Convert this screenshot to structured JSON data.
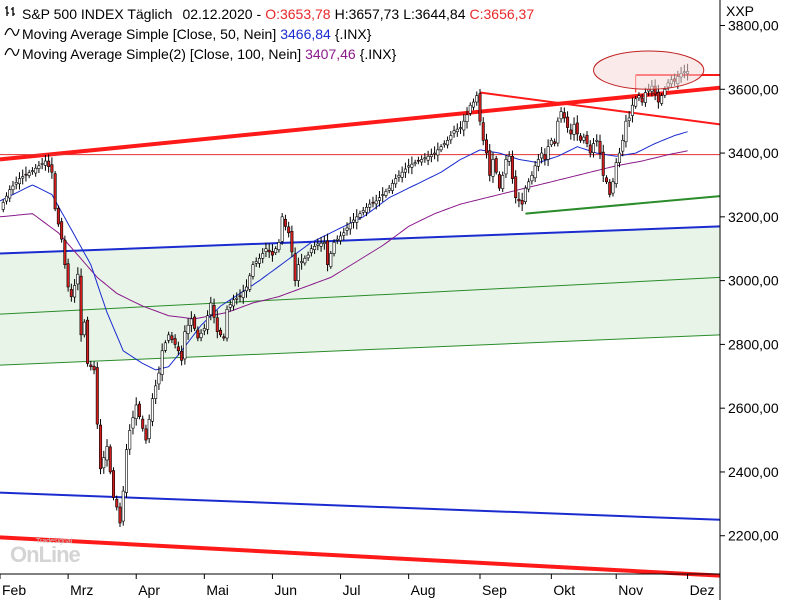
{
  "legend": {
    "instrument": "S&P 500 INDEX Täglich",
    "date": "02.12.2020",
    "open": "O:3653,78",
    "high": "H:3657,73",
    "low": "L:3644,84",
    "close": "C:3656,37",
    "ma50_label": "Moving Average Simple [Close, 50, Nein]",
    "ma50_value": "3466,84",
    "ma50_source": "{.INX}",
    "ma100_label": "Moving Average Simple(2) [Close, 100, Nein]",
    "ma100_value": "3407,46",
    "ma100_source": "{.INX}"
  },
  "watermark": {
    "small": "Tradesignal",
    "big": "OnLine"
  },
  "chart_data": {
    "type": "line",
    "instrument": "S&P 500 INDEX",
    "y_axis_label": "XXP",
    "ylim": [
      2080,
      3880
    ],
    "y_ticks": [
      2200,
      2400,
      2600,
      2800,
      3000,
      3200,
      3400,
      3600,
      3800
    ],
    "y_tick_labels": [
      "2200,00",
      "2400,00",
      "2600,00",
      "2800,00",
      "3000,00",
      "3200,00",
      "3400,00",
      "3600,00",
      "3800,00"
    ],
    "x_tick_labels": [
      "Feb",
      "Mrz",
      "Apr",
      "Mai",
      "Jun",
      "Jul",
      "Aug",
      "Sep",
      "Okt",
      "Nov",
      "Dez"
    ],
    "x_tick_day": [
      0,
      21,
      42,
      63,
      84,
      105,
      126,
      148,
      170,
      190,
      212
    ],
    "day_range": [
      0,
      222
    ],
    "price_key": [
      [
        0,
        3225
      ],
      [
        3,
        3285
      ],
      [
        6,
        3320
      ],
      [
        10,
        3345
      ],
      [
        14,
        3375
      ],
      [
        16,
        3340
      ],
      [
        17,
        3225
      ],
      [
        19,
        3130
      ],
      [
        20,
        3050
      ],
      [
        21,
        2980
      ],
      [
        22,
        2950
      ],
      [
        24,
        3020
      ],
      [
        25,
        2830
      ],
      [
        26,
        2870
      ],
      [
        27,
        2740
      ],
      [
        29,
        2720
      ],
      [
        30,
        2550
      ],
      [
        31,
        2410
      ],
      [
        33,
        2480
      ],
      [
        35,
        2320
      ],
      [
        36,
        2290
      ],
      [
        37,
        2240
      ],
      [
        38,
        2340
      ],
      [
        39,
        2470
      ],
      [
        40,
        2530
      ],
      [
        42,
        2610
      ],
      [
        45,
        2500
      ],
      [
        47,
        2630
      ],
      [
        49,
        2710
      ],
      [
        50,
        2780
      ],
      [
        52,
        2830
      ],
      [
        54,
        2800
      ],
      [
        55,
        2780
      ],
      [
        56,
        2750
      ],
      [
        57,
        2840
      ],
      [
        59,
        2880
      ],
      [
        61,
        2820
      ],
      [
        63,
        2850
      ],
      [
        65,
        2930
      ],
      [
        67,
        2840
      ],
      [
        69,
        2820
      ],
      [
        70,
        2910
      ],
      [
        72,
        2940
      ],
      [
        74,
        2950
      ],
      [
        76,
        2980
      ],
      [
        78,
        3050
      ],
      [
        80,
        3070
      ],
      [
        82,
        3100
      ],
      [
        84,
        3080
      ],
      [
        86,
        3120
      ],
      [
        87,
        3200
      ],
      [
        88,
        3170
      ],
      [
        89,
        3150
      ],
      [
        90,
        3090
      ],
      [
        91,
        3000
      ],
      [
        92,
        3050
      ],
      [
        95,
        3080
      ],
      [
        96,
        3100
      ],
      [
        98,
        3115
      ],
      [
        100,
        3120
      ],
      [
        101,
        3050
      ],
      [
        103,
        3120
      ],
      [
        106,
        3150
      ],
      [
        108,
        3180
      ],
      [
        110,
        3200
      ],
      [
        112,
        3220
      ],
      [
        114,
        3240
      ],
      [
        116,
        3250
      ],
      [
        118,
        3270
      ],
      [
        120,
        3290
      ],
      [
        122,
        3320
      ],
      [
        124,
        3340
      ],
      [
        126,
        3360
      ],
      [
        128,
        3370
      ],
      [
        130,
        3380
      ],
      [
        132,
        3390
      ],
      [
        134,
        3400
      ],
      [
        136,
        3420
      ],
      [
        138,
        3440
      ],
      [
        140,
        3470
      ],
      [
        142,
        3480
      ],
      [
        143,
        3500
      ],
      [
        144,
        3520
      ],
      [
        145,
        3550
      ],
      [
        146,
        3560
      ],
      [
        147,
        3580
      ],
      [
        148,
        3500
      ],
      [
        149,
        3440
      ],
      [
        150,
        3400
      ],
      [
        151,
        3330
      ],
      [
        152,
        3380
      ],
      [
        153,
        3340
      ],
      [
        154,
        3290
      ],
      [
        155,
        3330
      ],
      [
        156,
        3380
      ],
      [
        157,
        3390
      ],
      [
        158,
        3320
      ],
      [
        159,
        3260
      ],
      [
        160,
        3250
      ],
      [
        161,
        3240
      ],
      [
        162,
        3290
      ],
      [
        163,
        3310
      ],
      [
        164,
        3330
      ],
      [
        165,
        3360
      ],
      [
        166,
        3380
      ],
      [
        167,
        3400
      ],
      [
        168,
        3380
      ],
      [
        169,
        3420
      ],
      [
        170,
        3440
      ],
      [
        171,
        3430
      ],
      [
        172,
        3500
      ],
      [
        173,
        3530
      ],
      [
        174,
        3510
      ],
      [
        175,
        3480
      ],
      [
        176,
        3460
      ],
      [
        177,
        3490
      ],
      [
        178,
        3460
      ],
      [
        179,
        3440
      ],
      [
        180,
        3450
      ],
      [
        181,
        3430
      ],
      [
        182,
        3400
      ],
      [
        183,
        3430
      ],
      [
        184,
        3440
      ],
      [
        185,
        3400
      ],
      [
        186,
        3330
      ],
      [
        187,
        3310
      ],
      [
        188,
        3270
      ],
      [
        189,
        3310
      ],
      [
        190,
        3370
      ],
      [
        191,
        3400
      ],
      [
        192,
        3440
      ],
      [
        193,
        3500
      ],
      [
        194,
        3510
      ],
      [
        195,
        3550
      ],
      [
        196,
        3570
      ],
      [
        197,
        3580
      ],
      [
        198,
        3560
      ],
      [
        199,
        3590
      ],
      [
        200,
        3600
      ],
      [
        201,
        3610
      ],
      [
        202,
        3585
      ],
      [
        203,
        3560
      ],
      [
        204,
        3580
      ],
      [
        205,
        3600
      ],
      [
        206,
        3620
      ],
      [
        207,
        3630
      ],
      [
        208,
        3625
      ],
      [
        209,
        3640
      ],
      [
        210,
        3650
      ],
      [
        211,
        3655
      ],
      [
        212,
        3656
      ]
    ],
    "ma50": [
      [
        0,
        3250
      ],
      [
        10,
        3300
      ],
      [
        16,
        3270
      ],
      [
        22,
        3160
      ],
      [
        28,
        3050
      ],
      [
        33,
        2900
      ],
      [
        38,
        2780
      ],
      [
        44,
        2740
      ],
      [
        48,
        2720
      ],
      [
        52,
        2730
      ],
      [
        56,
        2780
      ],
      [
        62,
        2860
      ],
      [
        68,
        2920
      ],
      [
        74,
        2960
      ],
      [
        80,
        3000
      ],
      [
        88,
        3060
      ],
      [
        96,
        3120
      ],
      [
        104,
        3160
      ],
      [
        112,
        3200
      ],
      [
        120,
        3260
      ],
      [
        128,
        3300
      ],
      [
        136,
        3340
      ],
      [
        142,
        3380
      ],
      [
        148,
        3410
      ],
      [
        154,
        3400
      ],
      [
        160,
        3380
      ],
      [
        166,
        3370
      ],
      [
        172,
        3390
      ],
      [
        178,
        3420
      ],
      [
        184,
        3400
      ],
      [
        190,
        3390
      ],
      [
        196,
        3400
      ],
      [
        202,
        3430
      ],
      [
        208,
        3455
      ],
      [
        212,
        3467
      ]
    ],
    "ma100": [
      [
        0,
        3200
      ],
      [
        10,
        3210
      ],
      [
        18,
        3150
      ],
      [
        24,
        3080
      ],
      [
        30,
        3010
      ],
      [
        36,
        2960
      ],
      [
        44,
        2920
      ],
      [
        52,
        2890
      ],
      [
        60,
        2880
      ],
      [
        70,
        2900
      ],
      [
        78,
        2930
      ],
      [
        86,
        2950
      ],
      [
        94,
        2980
      ],
      [
        102,
        3010
      ],
      [
        110,
        3060
      ],
      [
        118,
        3110
      ],
      [
        126,
        3170
      ],
      [
        134,
        3210
      ],
      [
        142,
        3240
      ],
      [
        150,
        3260
      ],
      [
        158,
        3280
      ],
      [
        166,
        3300
      ],
      [
        174,
        3320
      ],
      [
        182,
        3340
      ],
      [
        190,
        3360
      ],
      [
        198,
        3375
      ],
      [
        206,
        3395
      ],
      [
        212,
        3407
      ]
    ],
    "trendlines": [
      {
        "name": "upper-channel-red",
        "color": "#ff1a1a",
        "width": 4,
        "from": [
          0,
          3380
        ],
        "to": [
          222,
          3605
        ]
      },
      {
        "name": "lower-channel-red",
        "color": "#ff1a1a",
        "width": 4,
        "from": [
          0,
          2195
        ],
        "to": [
          222,
          2075
        ]
      },
      {
        "name": "sep-high-resistance-red",
        "color": "#ff1a1a",
        "width": 2,
        "from": [
          148,
          3590
        ],
        "to": [
          222,
          3490
        ]
      },
      {
        "name": "horizontal-3400-red",
        "color": "#e43030",
        "width": 1,
        "from": [
          0,
          3395
        ],
        "to": [
          222,
          3395
        ]
      },
      {
        "name": "horizontal-breakout-red",
        "color": "#ff1a1a",
        "width": 2,
        "from": [
          196,
          3645
        ],
        "to": [
          222,
          3645
        ]
      },
      {
        "name": "breakout-vertical-red",
        "color": "#ff1a1a",
        "width": 1,
        "from": [
          196,
          3590
        ],
        "to": [
          196,
          3645
        ]
      },
      {
        "name": "upper-blue",
        "color": "#1a2ccf",
        "width": 2,
        "from": [
          0,
          3085
        ],
        "to": [
          222,
          3170
        ]
      },
      {
        "name": "lower-blue",
        "color": "#1a2ccf",
        "width": 2,
        "from": [
          0,
          2335
        ],
        "to": [
          222,
          2250
        ]
      },
      {
        "name": "green-mid",
        "color": "#2a8c2a",
        "width": 1,
        "from": [
          0,
          2895
        ],
        "to": [
          222,
          3010
        ]
      },
      {
        "name": "green-low",
        "color": "#2a8c2a",
        "width": 1,
        "from": [
          0,
          2735
        ],
        "to": [
          222,
          2830
        ]
      },
      {
        "name": "green-support",
        "color": "#2a8c2a",
        "width": 2,
        "from": [
          162,
          3210
        ],
        "to": [
          222,
          3265
        ]
      }
    ],
    "channel_fill": {
      "color": "#e8f4e8",
      "upper": [
        [
          0,
          3085
        ],
        [
          222,
          3170
        ]
      ],
      "lower": [
        [
          0,
          2735
        ],
        [
          222,
          2830
        ]
      ]
    },
    "highlight_ellipse": {
      "center": [
        200,
        3660
      ],
      "radius": [
        17,
        60
      ],
      "fill": "#f8d8d8",
      "stroke": "#c02020"
    }
  }
}
